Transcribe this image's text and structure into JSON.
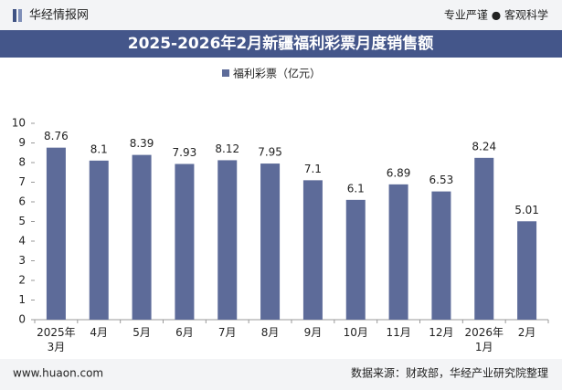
{
  "header": {
    "brand": "华经情报网",
    "slogan": "专业严谨 ● 客观科学"
  },
  "chart_data": {
    "type": "bar",
    "title": "2025-2026年2月新疆福利彩票月度销售额",
    "categories": [
      "2025年\n3月",
      "4月",
      "5月",
      "6月",
      "7月",
      "8月",
      "9月",
      "10月",
      "11月",
      "12月",
      "2026年\n1月",
      "2月"
    ],
    "series": [
      {
        "name": "福利彩票（亿元）",
        "color": "#5d6b99",
        "values": [
          8.76,
          8.1,
          8.39,
          7.93,
          8.12,
          7.95,
          7.1,
          6.1,
          6.89,
          6.53,
          8.24,
          5.01
        ]
      }
    ],
    "ylim": [
      0,
      10
    ],
    "yticks": [
      0,
      1,
      2,
      3,
      4,
      5,
      6,
      7,
      8,
      9,
      10
    ]
  },
  "footer": {
    "site": "www.huaon.com",
    "source": "数据来源：财政部，华经产业研究院整理"
  }
}
